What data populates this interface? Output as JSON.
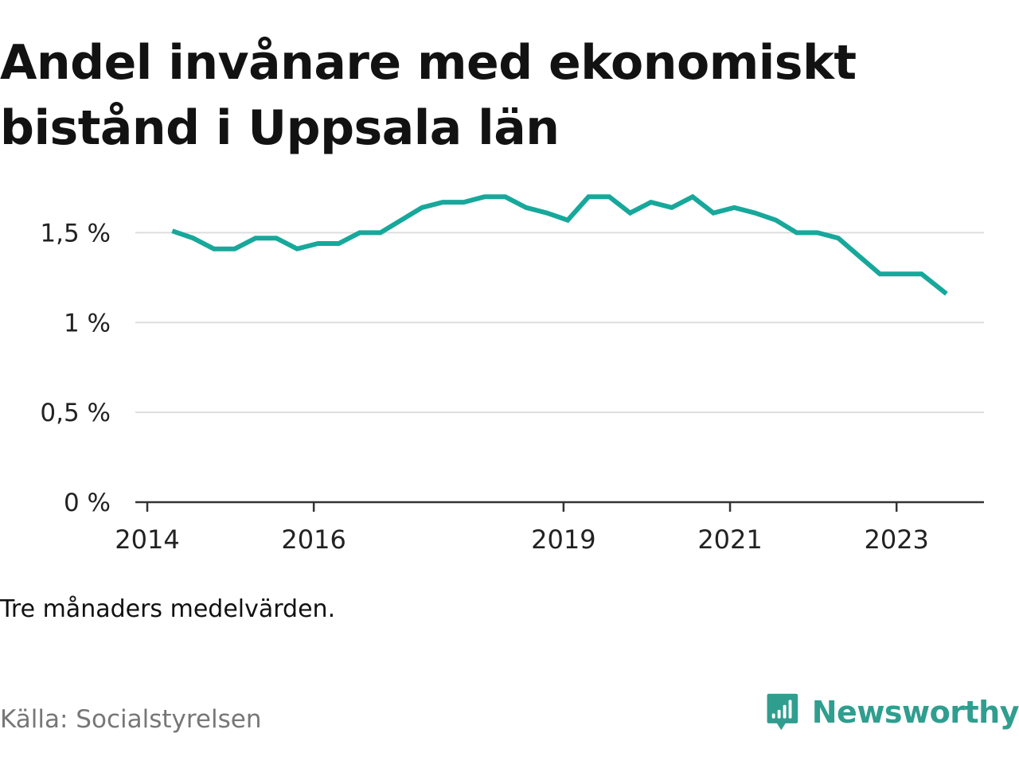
{
  "title": "Andel invånare med ekonomiskt bistånd i Uppsala län",
  "note": "Tre månaders medelvärden.",
  "source": "Källa: Socialstyrelsen",
  "brand": {
    "name": "Newsworthy",
    "icon": "newsworthy-bar-chart-logo-icon"
  },
  "colors": {
    "line": "#17a89b",
    "grid": "#dddddd",
    "axis": "#333333",
    "brand": "#2f9e8f",
    "source_text": "#777777"
  },
  "chart_data": {
    "type": "line",
    "title": "Andel invånare med ekonomiskt bistånd i Uppsala län",
    "xlabel": "",
    "ylabel": "",
    "x_ticks": [
      2014,
      2016,
      2019,
      2021,
      2023
    ],
    "y_ticks": [
      0,
      0.5,
      1,
      1.5
    ],
    "y_tick_labels": [
      "0 %",
      "0,5 %",
      "1 %",
      "1,5 %"
    ],
    "xlim": [
      2014,
      2024.05
    ],
    "ylim": [
      0,
      1.75
    ],
    "grid": true,
    "series": [
      {
        "values": [
          {
            "x": 2014.3,
            "y": 1.51
          },
          {
            "x": 2014.55,
            "y": 1.47
          },
          {
            "x": 2014.8,
            "y": 1.41
          },
          {
            "x": 2015.05,
            "y": 1.41
          },
          {
            "x": 2015.3,
            "y": 1.47
          },
          {
            "x": 2015.55,
            "y": 1.47
          },
          {
            "x": 2015.8,
            "y": 1.41
          },
          {
            "x": 2016.05,
            "y": 1.44
          },
          {
            "x": 2016.3,
            "y": 1.44
          },
          {
            "x": 2016.55,
            "y": 1.5
          },
          {
            "x": 2016.8,
            "y": 1.5
          },
          {
            "x": 2017.05,
            "y": 1.57
          },
          {
            "x": 2017.3,
            "y": 1.64
          },
          {
            "x": 2017.55,
            "y": 1.67
          },
          {
            "x": 2017.8,
            "y": 1.67
          },
          {
            "x": 2018.05,
            "y": 1.7
          },
          {
            "x": 2018.3,
            "y": 1.7
          },
          {
            "x": 2018.55,
            "y": 1.64
          },
          {
            "x": 2018.8,
            "y": 1.61
          },
          {
            "x": 2019.05,
            "y": 1.57
          },
          {
            "x": 2019.3,
            "y": 1.7
          },
          {
            "x": 2019.55,
            "y": 1.7
          },
          {
            "x": 2019.8,
            "y": 1.61
          },
          {
            "x": 2020.05,
            "y": 1.67
          },
          {
            "x": 2020.3,
            "y": 1.64
          },
          {
            "x": 2020.55,
            "y": 1.7
          },
          {
            "x": 2020.8,
            "y": 1.61
          },
          {
            "x": 2021.05,
            "y": 1.64
          },
          {
            "x": 2021.3,
            "y": 1.61
          },
          {
            "x": 2021.55,
            "y": 1.57
          },
          {
            "x": 2021.8,
            "y": 1.5
          },
          {
            "x": 2022.05,
            "y": 1.5
          },
          {
            "x": 2022.3,
            "y": 1.47
          },
          {
            "x": 2022.55,
            "y": 1.37
          },
          {
            "x": 2022.8,
            "y": 1.27
          },
          {
            "x": 2023.05,
            "y": 1.27
          },
          {
            "x": 2023.3,
            "y": 1.27
          },
          {
            "x": 2023.6,
            "y": 1.16
          }
        ]
      }
    ]
  }
}
